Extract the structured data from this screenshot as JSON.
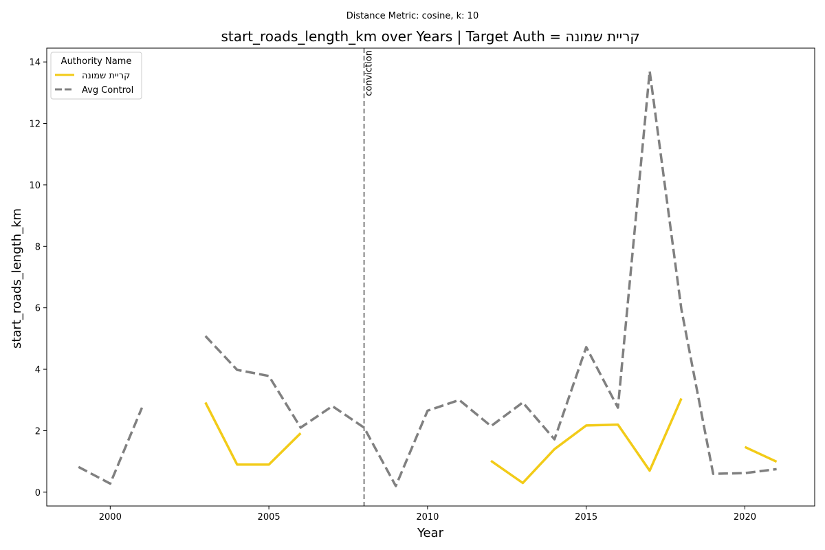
{
  "chart_data": {
    "type": "line",
    "suptitle": "Distance Metric: cosine, k: 10",
    "title": "start_roads_length_km over Years | Target Auth = קריית שמונה",
    "xlabel": "Year",
    "ylabel": "start_roads_length_km",
    "xlim": [
      1998.0,
      2022.2
    ],
    "ylim": [
      -0.45,
      14.45
    ],
    "x_ticks": [
      2000,
      2005,
      2010,
      2015,
      2020
    ],
    "y_ticks": [
      0,
      2,
      4,
      6,
      8,
      10,
      12,
      14
    ],
    "legend": {
      "title": "Authority Name",
      "placement": "top-left"
    },
    "annotation": {
      "label": "conviction",
      "x": 2008
    },
    "series": [
      {
        "name": "קריית שמונה",
        "color": "#f2cb18",
        "style": "solid",
        "points": [
          [
            1999,
            null
          ],
          [
            2000,
            null
          ],
          [
            2001,
            null
          ],
          [
            2002,
            null
          ],
          [
            2003,
            2.92
          ],
          [
            2004,
            0.9
          ],
          [
            2005,
            0.9
          ],
          [
            2006,
            1.92
          ],
          [
            2007,
            null
          ],
          [
            2008,
            null
          ],
          [
            2009,
            null
          ],
          [
            2010,
            null
          ],
          [
            2011,
            null
          ],
          [
            2012,
            1.02
          ],
          [
            2013,
            0.3
          ],
          [
            2014,
            1.4
          ],
          [
            2015,
            2.17
          ],
          [
            2016,
            2.2
          ],
          [
            2017,
            0.7
          ],
          [
            2018,
            3.05
          ],
          [
            2019,
            null
          ],
          [
            2020,
            1.47
          ],
          [
            2021,
            0.99
          ]
        ]
      },
      {
        "name": "Avg Control",
        "color": "#808080",
        "style": "dashed",
        "points": [
          [
            1999,
            0.82
          ],
          [
            2000,
            0.28
          ],
          [
            2001,
            2.75
          ],
          [
            2002,
            null
          ],
          [
            2003,
            5.08
          ],
          [
            2004,
            3.98
          ],
          [
            2005,
            3.78
          ],
          [
            2006,
            2.1
          ],
          [
            2007,
            2.8
          ],
          [
            2008,
            2.1
          ],
          [
            2009,
            0.2
          ],
          [
            2010,
            2.65
          ],
          [
            2011,
            3.0
          ],
          [
            2012,
            2.15
          ],
          [
            2013,
            2.92
          ],
          [
            2014,
            1.72
          ],
          [
            2015,
            4.72
          ],
          [
            2016,
            2.75
          ],
          [
            2017,
            13.7
          ],
          [
            2018,
            5.95
          ],
          [
            2019,
            0.6
          ],
          [
            2020,
            0.62
          ],
          [
            2021,
            0.75
          ]
        ]
      }
    ]
  }
}
